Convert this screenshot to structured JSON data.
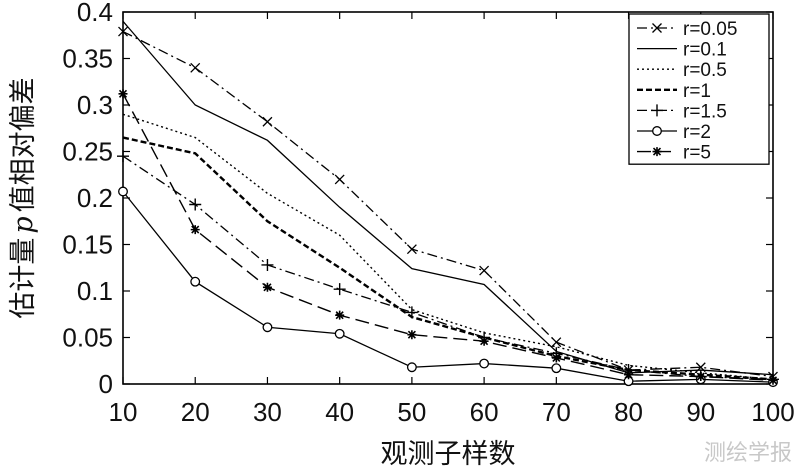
{
  "chart_data": {
    "type": "line",
    "title": "",
    "xlabel": "观测子样数",
    "ylabel_pre": "估计量",
    "ylabel_var": "p",
    "ylabel_post": "值相对偏差",
    "xlim": [
      10,
      100
    ],
    "ylim": [
      0,
      0.4
    ],
    "x": [
      10,
      20,
      30,
      40,
      50,
      60,
      70,
      80,
      90,
      100
    ],
    "xticks": [
      "10",
      "20",
      "30",
      "40",
      "50",
      "60",
      "70",
      "80",
      "90",
      "100"
    ],
    "yticks": [
      {
        "v": 0,
        "label": "0"
      },
      {
        "v": 0.05,
        "label": "0.05"
      },
      {
        "v": 0.1,
        "label": "0.1"
      },
      {
        "v": 0.15,
        "label": "0.15"
      },
      {
        "v": 0.2,
        "label": "0.2"
      },
      {
        "v": 0.25,
        "label": "0.25"
      },
      {
        "v": 0.3,
        "label": "0.3"
      },
      {
        "v": 0.35,
        "label": "0.35"
      },
      {
        "v": 0.4,
        "label": "0.4"
      }
    ],
    "grid": false,
    "legend_position": "top-right",
    "series": [
      {
        "name": "r=0.05",
        "style": "dashdot",
        "marker": "x",
        "values": [
          0.379,
          0.34,
          0.282,
          0.22,
          0.145,
          0.122,
          0.045,
          0.015,
          0.018,
          0.008
        ]
      },
      {
        "name": "r=0.1",
        "style": "solid",
        "marker": "none",
        "values": [
          0.39,
          0.3,
          0.262,
          0.19,
          0.124,
          0.107,
          0.035,
          0.012,
          0.015,
          0.01
        ]
      },
      {
        "name": "r=0.5",
        "style": "dotted",
        "marker": "none",
        "values": [
          0.29,
          0.265,
          0.205,
          0.16,
          0.08,
          0.055,
          0.04,
          0.02,
          0.012,
          0.005
        ]
      },
      {
        "name": "r=1",
        "style": "dashed",
        "marker": "none",
        "values": [
          0.265,
          0.248,
          0.175,
          0.125,
          0.072,
          0.05,
          0.03,
          0.015,
          0.01,
          0.005
        ]
      },
      {
        "name": "r=1.5",
        "style": "dashdot",
        "marker": "plus",
        "values": [
          0.245,
          0.193,
          0.128,
          0.102,
          0.077,
          0.05,
          0.033,
          0.015,
          0.008,
          0.005
        ]
      },
      {
        "name": "r=2",
        "style": "solid",
        "marker": "circle",
        "values": [
          0.207,
          0.11,
          0.061,
          0.054,
          0.018,
          0.022,
          0.017,
          0.003,
          0.005,
          0.002
        ]
      },
      {
        "name": "r=5",
        "style": "longdash",
        "marker": "star",
        "values": [
          0.312,
          0.166,
          0.104,
          0.074,
          0.053,
          0.046,
          0.028,
          0.01,
          0.008,
          0.004
        ]
      }
    ]
  },
  "watermark": "测绘学报"
}
